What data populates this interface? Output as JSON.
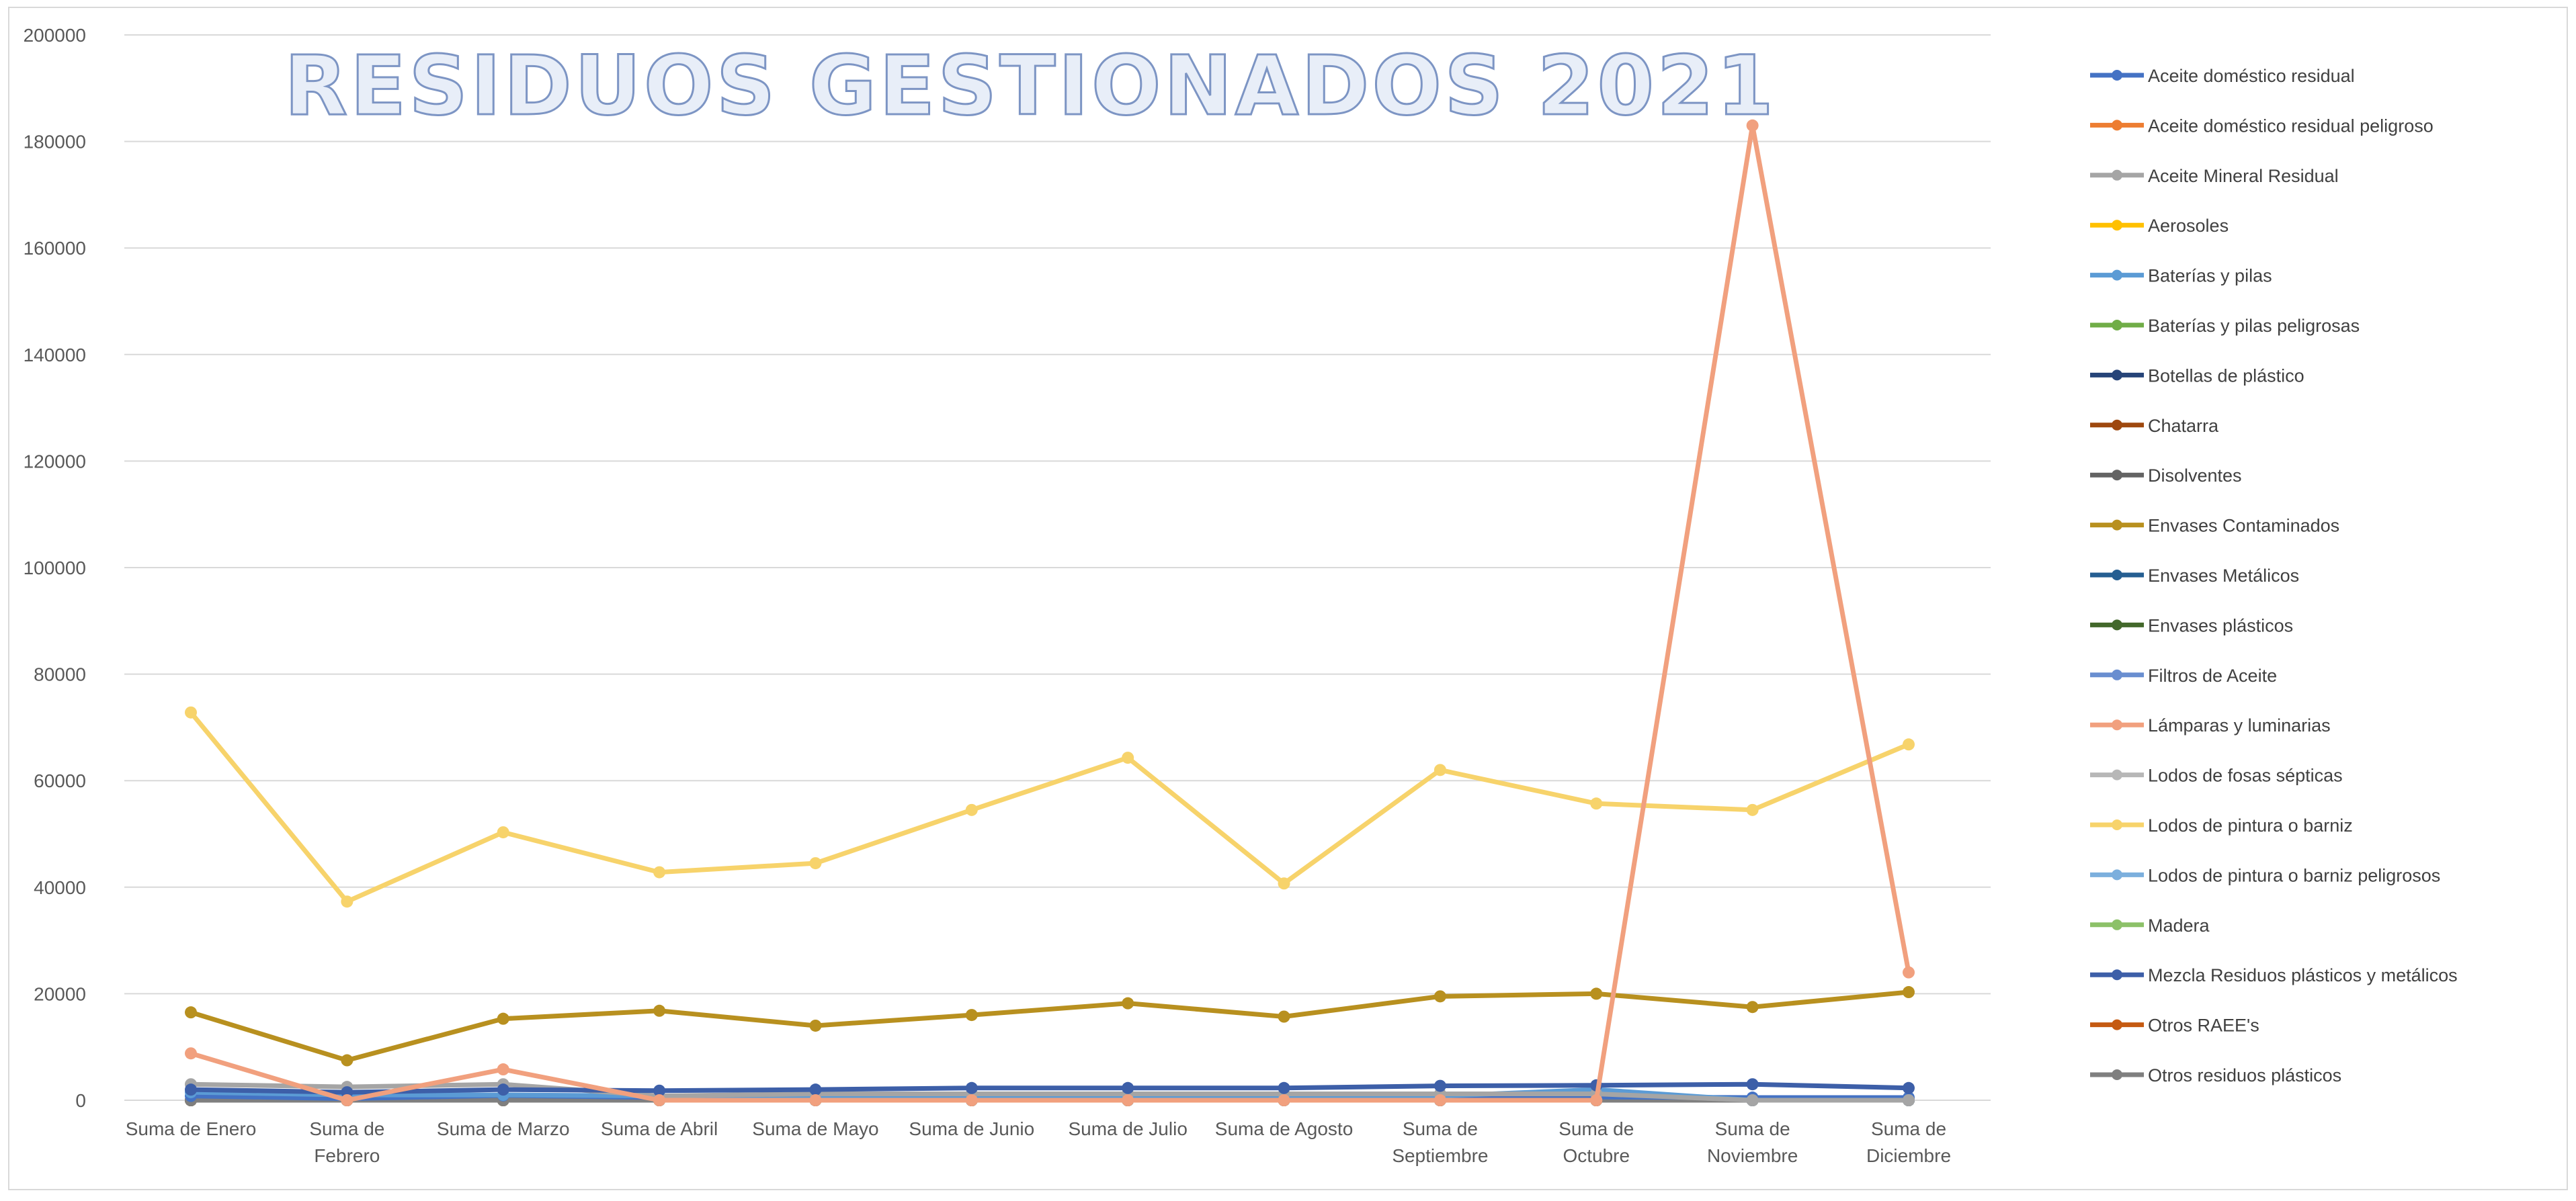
{
  "chart_data": {
    "type": "line",
    "title": "RESIDUOS GESTIONADOS 2021",
    "xlabel": "",
    "ylabel": "",
    "ylim": [
      0,
      200000
    ],
    "y_ticks": [
      "0",
      "20000",
      "40000",
      "60000",
      "80000",
      "100000",
      "120000",
      "140000",
      "160000",
      "180000",
      "200000"
    ],
    "grid": true,
    "legend_position": "right",
    "categories": [
      [
        "Suma de Enero"
      ],
      [
        "Suma de",
        "Febrero"
      ],
      [
        "Suma de Marzo"
      ],
      [
        "Suma de Abril"
      ],
      [
        "Suma de Mayo"
      ],
      [
        "Suma de Junio"
      ],
      [
        "Suma de Julio"
      ],
      [
        "Suma de Agosto"
      ],
      [
        "Suma de",
        "Septiembre"
      ],
      [
        "Suma de",
        "Octubre"
      ],
      [
        "Suma de",
        "Noviembre"
      ],
      [
        "Suma de",
        "Diciembre"
      ]
    ],
    "series": [
      {
        "name": "Aceite doméstico residual",
        "color": "#4472c4",
        "values": [
          800,
          300,
          900,
          500,
          500,
          500,
          500,
          500,
          500,
          600,
          500,
          500
        ]
      },
      {
        "name": "Aceite doméstico residual peligroso",
        "color": "#ed7d31",
        "values": [
          0,
          0,
          0,
          0,
          0,
          0,
          0,
          0,
          0,
          0,
          0,
          0
        ]
      },
      {
        "name": "Aceite Mineral Residual",
        "color": "#a5a5a5",
        "values": [
          3000,
          2500,
          3000,
          800,
          1200,
          1200,
          1200,
          1200,
          1200,
          1200,
          0,
          0
        ]
      },
      {
        "name": "Aerosoles",
        "color": "#ffc000",
        "values": [
          0,
          0,
          0,
          0,
          0,
          0,
          0,
          0,
          0,
          0,
          0,
          0
        ]
      },
      {
        "name": "Baterías y pilas",
        "color": "#5b9bd5",
        "values": [
          1500,
          1000,
          1000,
          800,
          800,
          800,
          800,
          800,
          800,
          2000,
          0,
          0
        ]
      },
      {
        "name": "Baterías y pilas peligrosas",
        "color": "#70ad47",
        "values": [
          0,
          0,
          0,
          0,
          0,
          0,
          0,
          0,
          0,
          0,
          0,
          0
        ]
      },
      {
        "name": "Botellas de plástico",
        "color": "#264478",
        "values": [
          0,
          0,
          0,
          0,
          0,
          0,
          0,
          0,
          0,
          0,
          0,
          0
        ]
      },
      {
        "name": "Chatarra",
        "color": "#9e480e",
        "values": [
          0,
          0,
          0,
          0,
          0,
          0,
          0,
          0,
          0,
          0,
          0,
          0
        ]
      },
      {
        "name": "Disolventes",
        "color": "#636363",
        "values": [
          0,
          0,
          0,
          0,
          0,
          0,
          0,
          0,
          0,
          0,
          0,
          0
        ]
      },
      {
        "name": "Envases Contaminados",
        "color": "#b8901f",
        "values": [
          16500,
          7500,
          15300,
          16800,
          14000,
          16000,
          18200,
          15700,
          19500,
          20000,
          17500,
          20300
        ]
      },
      {
        "name": "Envases Metálicos",
        "color": "#255e91",
        "values": [
          0,
          0,
          0,
          0,
          0,
          0,
          0,
          0,
          0,
          0,
          0,
          0
        ]
      },
      {
        "name": "Envases plásticos",
        "color": "#43682b",
        "values": [
          0,
          0,
          0,
          0,
          0,
          0,
          0,
          0,
          0,
          0,
          0,
          0
        ]
      },
      {
        "name": "Filtros de Aceite",
        "color": "#698ed0",
        "values": [
          0,
          0,
          0,
          0,
          0,
          0,
          0,
          0,
          0,
          0,
          0,
          0
        ]
      },
      {
        "name": "Lámparas y luminarias",
        "color": "#f1a07e",
        "values": [
          8800,
          0,
          5800,
          0,
          0,
          0,
          0,
          0,
          0,
          0,
          183000,
          24000
        ]
      },
      {
        "name": "Lodos de fosas sépticas",
        "color": "#b7b7b7",
        "values": [
          0,
          0,
          0,
          0,
          0,
          0,
          0,
          0,
          0,
          0,
          0,
          0
        ]
      },
      {
        "name": "Lodos de pintura o barniz",
        "color": "#f7d36b",
        "values": [
          72800,
          37300,
          50300,
          42800,
          44500,
          54500,
          64300,
          40700,
          62000,
          55700,
          54500,
          66800
        ]
      },
      {
        "name": "Lodos de pintura o barniz peligrosos",
        "color": "#7cafdd",
        "values": [
          0,
          0,
          0,
          0,
          0,
          0,
          0,
          0,
          0,
          0,
          0,
          0
        ]
      },
      {
        "name": "Madera",
        "color": "#8cc168",
        "values": [
          0,
          0,
          0,
          0,
          0,
          0,
          0,
          0,
          0,
          0,
          0,
          0
        ]
      },
      {
        "name": "Mezcla Residuos plásticos y metálicos",
        "color": "#3d5fa8",
        "values": [
          2000,
          1500,
          2000,
          1800,
          2000,
          2300,
          2300,
          2300,
          2700,
          2800,
          3000,
          2300
        ]
      },
      {
        "name": "Otros RAEE's",
        "color": "#c55a11",
        "values": [
          0,
          0,
          0,
          0,
          0,
          0,
          0,
          0,
          0,
          0,
          0,
          0
        ]
      },
      {
        "name": "Otros residuos plásticos",
        "color": "#7f7f7f",
        "values": [
          0,
          0,
          0,
          0,
          0,
          0,
          0,
          0,
          0,
          0,
          0,
          0
        ]
      }
    ]
  }
}
